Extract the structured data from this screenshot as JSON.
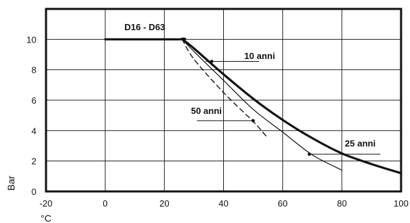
{
  "chart_data": {
    "type": "line",
    "xlabel": "°C",
    "ylabel": "Bar",
    "xlim": [
      -20,
      100
    ],
    "ylim": [
      0,
      12
    ],
    "x_ticks": [
      -20,
      0,
      20,
      40,
      60,
      80,
      100
    ],
    "y_ticks": [
      0,
      2,
      4,
      6,
      8,
      10
    ],
    "grid": true,
    "series": [
      {
        "name": "25 anni",
        "style": "thick",
        "x": [
          0,
          25,
          26,
          30,
          40,
          50,
          60,
          70,
          80,
          90,
          100
        ],
        "y": [
          10,
          10,
          10,
          9.4,
          7.7,
          6.1,
          4.7,
          3.5,
          2.5,
          1.8,
          1.2
        ]
      },
      {
        "name": "10 anni",
        "style": "thin",
        "x": [
          26,
          30,
          40,
          50,
          60,
          70,
          80
        ],
        "y": [
          10,
          9.2,
          7.3,
          5.4,
          3.9,
          2.4,
          1.4
        ]
      },
      {
        "name": "50 anni",
        "style": "dashed",
        "x": [
          26,
          30,
          40,
          50,
          55
        ],
        "y": [
          10,
          8.7,
          6.5,
          4.6,
          3.5
        ]
      }
    ],
    "annotations": [
      {
        "text": "D16 - D63",
        "at": [
          6.5,
          10.6
        ]
      },
      {
        "text": "10 anni",
        "at": [
          47,
          8.7
        ],
        "line_from": [
          52,
          8.55
        ],
        "line_to": [
          34,
          8.55
        ]
      },
      {
        "text": "50 anni",
        "at": [
          29,
          5.1
        ],
        "line_from": [
          31,
          4.65
        ],
        "line_to": [
          50,
          4.65
        ]
      },
      {
        "text": "25 anni",
        "at": [
          81,
          2.95
        ],
        "line_from": [
          93,
          2.45
        ],
        "line_to": [
          69,
          2.45
        ]
      }
    ],
    "markers": [
      {
        "x": 36,
        "y": 8.55
      },
      {
        "x": 50,
        "y": 4.65
      },
      {
        "x": 69,
        "y": 2.45
      }
    ]
  }
}
